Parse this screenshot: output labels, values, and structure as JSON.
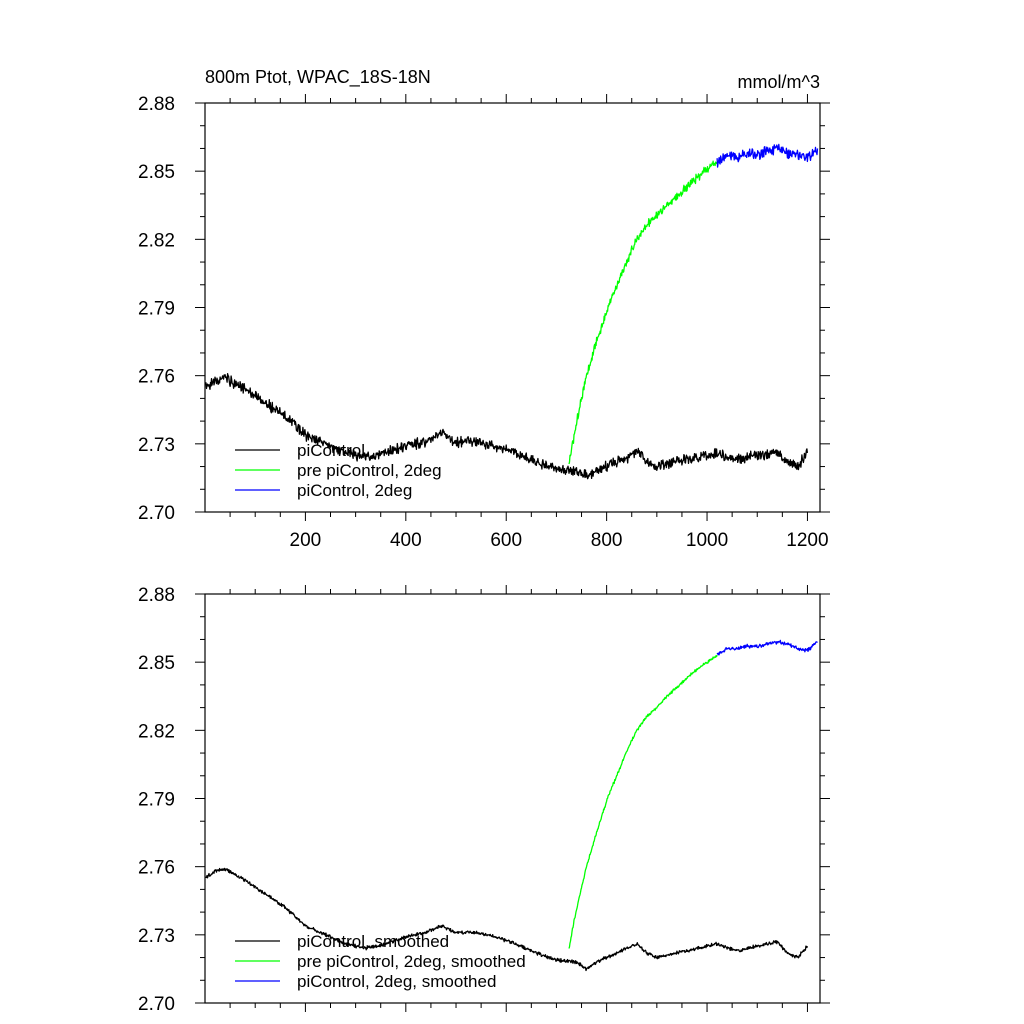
{
  "chart_data": [
    {
      "type": "line",
      "title": "800m Ptot, WPAC_18S-18N",
      "units": "mmol/m^3",
      "xlim": [
        0,
        1225
      ],
      "ylim": [
        2.7,
        2.88
      ],
      "xticks": [
        200,
        400,
        600,
        800,
        1000,
        1200
      ],
      "xtick_labels": [
        "200",
        "400",
        "600",
        "800",
        "1000",
        "1200"
      ],
      "yticks": [
        2.7,
        2.73,
        2.76,
        2.79,
        2.82,
        2.85,
        2.88
      ],
      "ytick_labels": [
        "2.70",
        "2.73",
        "2.76",
        "2.79",
        "2.82",
        "2.85",
        "2.88"
      ],
      "legend_position": "bottom-left",
      "series": [
        {
          "name": "piControl",
          "color": "#000000",
          "noise": 0.0028,
          "x": [
            1,
            20,
            40,
            80,
            120,
            160,
            200,
            240,
            280,
            320,
            360,
            400,
            440,
            470,
            500,
            540,
            580,
            620,
            660,
            700,
            740,
            760,
            780,
            800,
            840,
            860,
            880,
            900,
            940,
            980,
            1020,
            1060,
            1100,
            1140,
            1160,
            1180,
            1200
          ],
          "y": [
            2.755,
            2.758,
            2.759,
            2.754,
            2.748,
            2.742,
            2.734,
            2.73,
            2.726,
            2.724,
            2.726,
            2.729,
            2.731,
            2.735,
            2.731,
            2.731,
            2.729,
            2.726,
            2.722,
            2.719,
            2.718,
            2.716,
            2.718,
            2.72,
            2.724,
            2.727,
            2.722,
            2.72,
            2.722,
            2.724,
            2.726,
            2.723,
            2.725,
            2.726,
            2.722,
            2.72,
            2.726
          ]
        },
        {
          "name": "pre piControl, 2deg",
          "color": "#00ff00",
          "noise": 0.0022,
          "x": [
            725,
            735,
            745,
            760,
            780,
            800,
            820,
            840,
            860,
            880,
            900,
            920,
            940,
            960,
            980,
            1000,
            1020
          ],
          "y": [
            2.721,
            2.733,
            2.745,
            2.76,
            2.775,
            2.788,
            2.8,
            2.81,
            2.82,
            2.826,
            2.831,
            2.835,
            2.839,
            2.843,
            2.847,
            2.851,
            2.854
          ]
        },
        {
          "name": "piControl, 2deg",
          "color": "#0000ff",
          "noise": 0.0028,
          "x": [
            1020,
            1040,
            1060,
            1080,
            1100,
            1120,
            1140,
            1160,
            1180,
            1200,
            1220
          ],
          "y": [
            2.854,
            2.857,
            2.856,
            2.858,
            2.857,
            2.859,
            2.86,
            2.858,
            2.857,
            2.856,
            2.86
          ]
        }
      ]
    },
    {
      "type": "line",
      "title": "",
      "units": "",
      "xlim": [
        0,
        1225
      ],
      "ylim": [
        2.7,
        2.88
      ],
      "xticks": [
        200,
        400,
        600,
        800,
        1000,
        1200
      ],
      "xtick_labels": [],
      "yticks": [
        2.7,
        2.73,
        2.76,
        2.79,
        2.82,
        2.85,
        2.88
      ],
      "ytick_labels": [
        "2.70",
        "2.73",
        "2.76",
        "2.79",
        "2.82",
        "2.85",
        "2.88"
      ],
      "legend_position": "bottom-left",
      "series": [
        {
          "name": "piControl, smoothed",
          "color": "#000000",
          "noise": 0.0009,
          "x": [
            1,
            20,
            40,
            80,
            120,
            160,
            200,
            240,
            280,
            320,
            360,
            400,
            440,
            470,
            500,
            540,
            580,
            620,
            660,
            700,
            740,
            760,
            780,
            800,
            840,
            860,
            880,
            900,
            940,
            980,
            1020,
            1060,
            1100,
            1140,
            1160,
            1180,
            1200
          ],
          "y": [
            2.755,
            2.758,
            2.759,
            2.754,
            2.748,
            2.742,
            2.734,
            2.73,
            2.726,
            2.724,
            2.726,
            2.729,
            2.731,
            2.734,
            2.731,
            2.731,
            2.729,
            2.726,
            2.722,
            2.719,
            2.718,
            2.715,
            2.718,
            2.72,
            2.724,
            2.726,
            2.722,
            2.72,
            2.722,
            2.724,
            2.726,
            2.723,
            2.725,
            2.727,
            2.722,
            2.72,
            2.725
          ]
        },
        {
          "name": "pre piControl, 2deg, smoothed",
          "color": "#00ff00",
          "noise": 0.0008,
          "x": [
            725,
            735,
            745,
            760,
            780,
            800,
            820,
            840,
            860,
            880,
            900,
            920,
            940,
            960,
            980,
            1000,
            1020
          ],
          "y": [
            2.724,
            2.736,
            2.746,
            2.76,
            2.775,
            2.789,
            2.8,
            2.811,
            2.82,
            2.826,
            2.83,
            2.835,
            2.839,
            2.843,
            2.847,
            2.85,
            2.853
          ]
        },
        {
          "name": "piControl, 2deg, smoothed",
          "color": "#0000ff",
          "noise": 0.001,
          "x": [
            1020,
            1040,
            1060,
            1080,
            1100,
            1120,
            1140,
            1160,
            1180,
            1200,
            1220
          ],
          "y": [
            2.853,
            2.856,
            2.856,
            2.857,
            2.857,
            2.858,
            2.859,
            2.858,
            2.856,
            2.855,
            2.859
          ]
        }
      ]
    }
  ]
}
